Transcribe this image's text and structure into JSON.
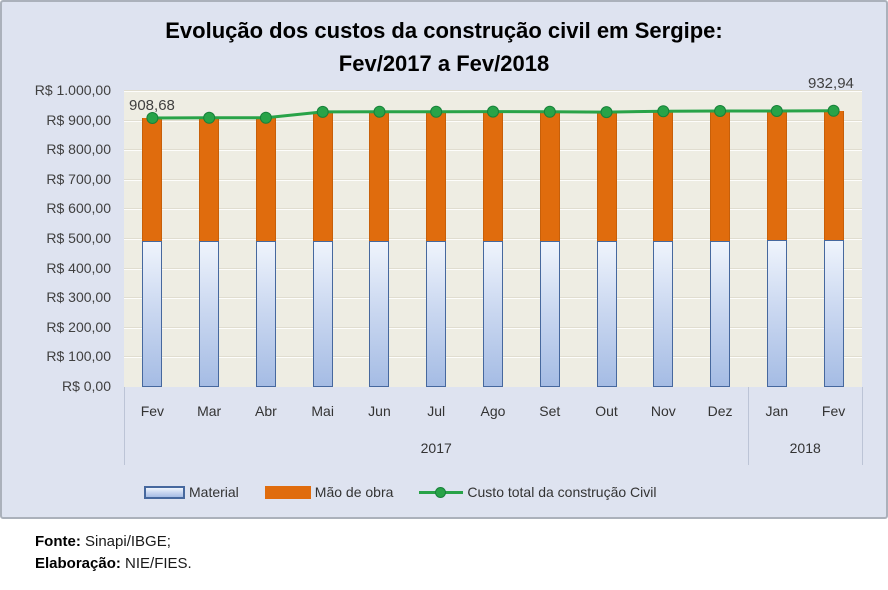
{
  "chart": {
    "title_line1": "Evolução dos custos da construção civil em Sergipe:",
    "title_line2": "Fev/2017 a Fev/2018"
  },
  "chart_data": {
    "type": "stacked-bar-with-line",
    "categories": [
      "Fev",
      "Mar",
      "Abr",
      "Mai",
      "Jun",
      "Jul",
      "Ago",
      "Set",
      "Out",
      "Nov",
      "Dez",
      "Jan",
      "Fev"
    ],
    "year_groups": [
      {
        "label": "2017",
        "count": 11
      },
      {
        "label": "2018",
        "count": 2
      }
    ],
    "y_ticks": [
      "R$ 1.000,00",
      "R$ 900,00",
      "R$ 800,00",
      "R$ 700,00",
      "R$ 600,00",
      "R$ 500,00",
      "R$ 400,00",
      "R$ 300,00",
      "R$ 200,00",
      "R$ 100,00",
      "R$ 0,00"
    ],
    "ylim": [
      0,
      1000
    ],
    "grid": true,
    "legend_position": "bottom",
    "series": [
      {
        "name": "Material",
        "type": "bar",
        "color": "#A5BCE4",
        "border_color": "#46689E",
        "values": [
          494,
          494,
          494,
          494,
          494,
          494,
          494,
          494,
          494,
          494,
          494,
          495,
          495
        ]
      },
      {
        "name": "Mão de obra",
        "type": "bar",
        "color": "#E06C0D",
        "values": [
          414.68,
          415.46,
          415.81,
          435.5,
          435.9,
          436.1,
          436.3,
          435.6,
          434.8,
          437.8,
          438.4,
          437.6,
          437.94
        ]
      },
      {
        "name": "Custo total da construção Civil",
        "type": "line",
        "color": "#28A348",
        "marker_border_color": "#17813A",
        "values": [
          908.68,
          909.46,
          909.81,
          929.5,
          929.9,
          930.1,
          930.3,
          929.6,
          928.8,
          931.8,
          932.4,
          932.6,
          932.94
        ]
      }
    ],
    "data_labels": {
      "first": "908,68",
      "last": "932,94"
    }
  },
  "footer": {
    "fonte_label": "Fonte:",
    "fonte_text": " Sinapi/IBGE;",
    "elaboracao_label": "Elaboração:",
    "elaboracao_text": " NIE/FIES."
  }
}
